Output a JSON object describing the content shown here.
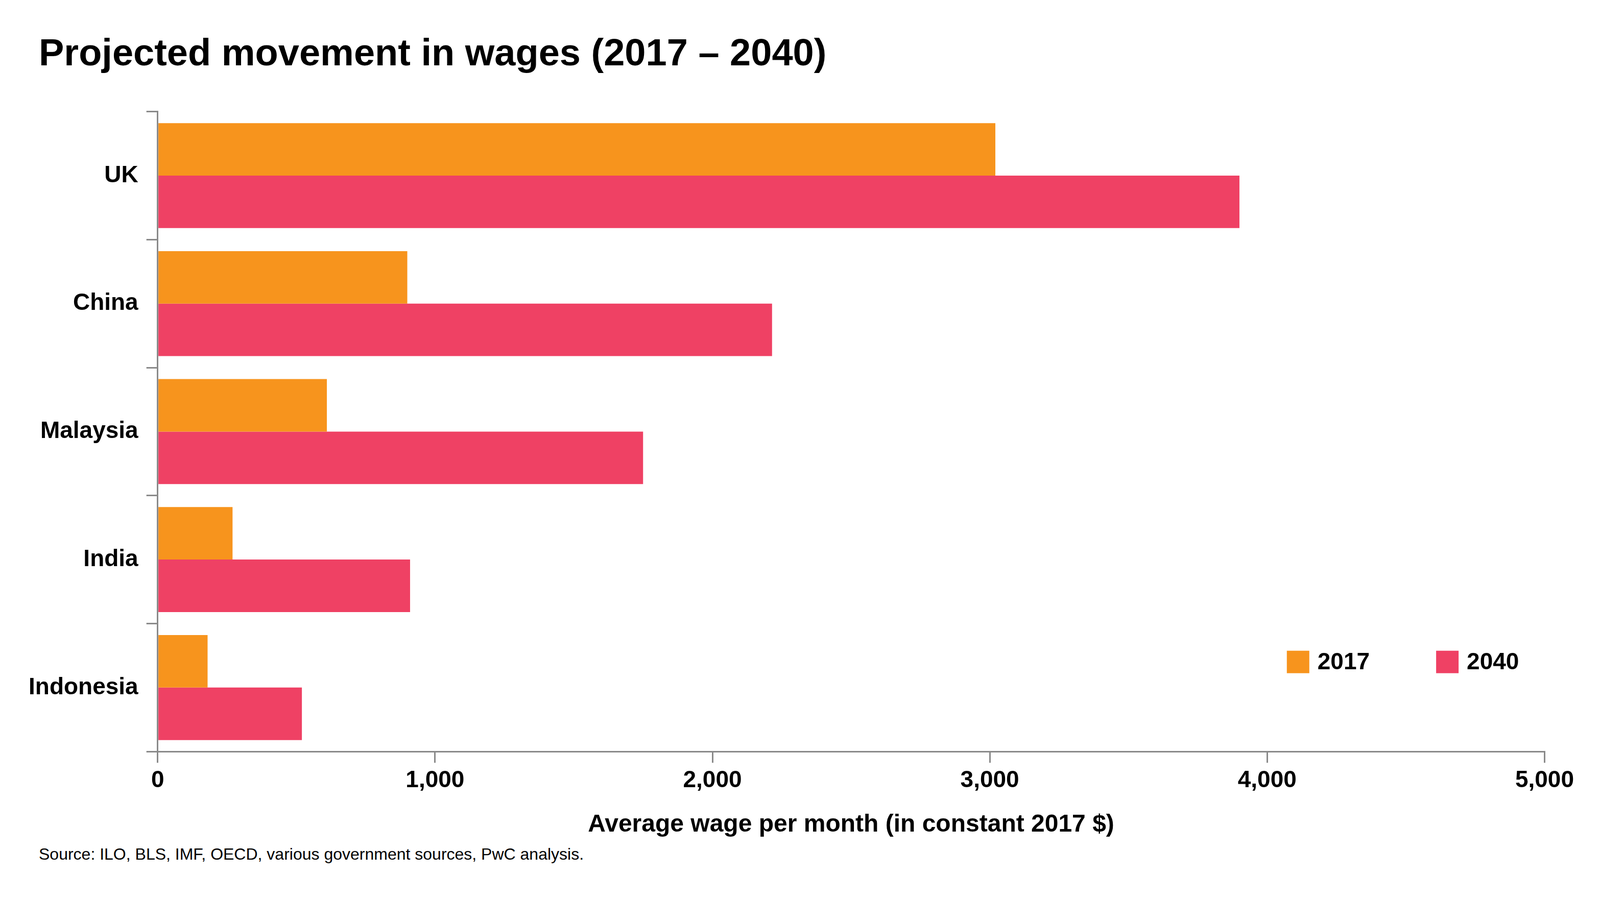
{
  "chart_data": {
    "type": "bar",
    "orientation": "horizontal",
    "title": "Projected movement in wages (2017 – 2040)",
    "x_label": "Average wage per month (in constant 2017 $)",
    "source": "Source: ILO, BLS, IMF, OECD, various government sources, PwC analysis.",
    "categories": [
      "UK",
      "China",
      "Malaysia",
      "India",
      "Indonesia"
    ],
    "series": [
      {
        "name": "2017",
        "color": "#f7941d",
        "values": [
          3020,
          900,
          610,
          270,
          180
        ]
      },
      {
        "name": "2040",
        "color": "#ef4164",
        "values": [
          3900,
          2215,
          1750,
          910,
          520
        ]
      }
    ],
    "xlim": [
      0,
      5000
    ],
    "xticks": [
      0,
      {
        "value": 1000,
        "label": "1,000"
      },
      {
        "value": 2000,
        "label": "2,000"
      },
      {
        "value": 3000,
        "label": "3,000"
      },
      {
        "value": 4000,
        "label": "4,000"
      },
      {
        "value": 5000,
        "label": "5,000"
      }
    ],
    "grid": false,
    "legend": "lower right"
  }
}
